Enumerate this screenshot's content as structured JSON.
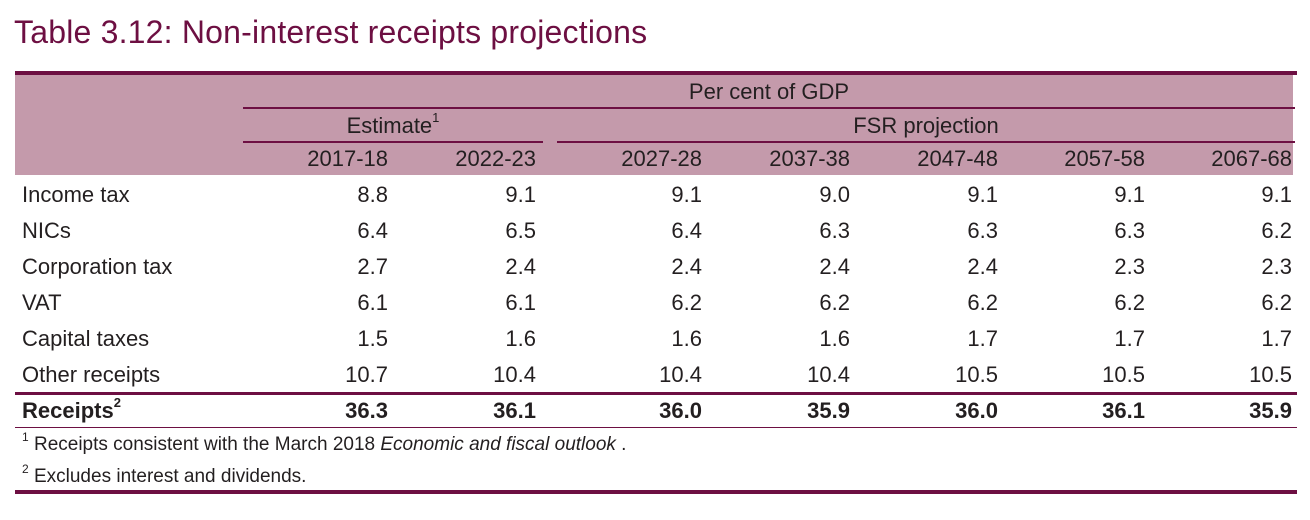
{
  "title": "Table 3.12:  Non-interest receipts projections",
  "header": {
    "unit": "Per cent of GDP",
    "group_estimate": "Estimate",
    "group_estimate_note": "1",
    "group_projection": "FSR projection",
    "years": [
      "2017-18",
      "2022-23",
      "2027-28",
      "2037-38",
      "2047-48",
      "2057-58",
      "2067-68"
    ]
  },
  "rows": [
    {
      "label": "Income tax",
      "values": [
        "8.8",
        "9.1",
        "9.1",
        "9.0",
        "9.1",
        "9.1",
        "9.1"
      ]
    },
    {
      "label": "NICs",
      "values": [
        "6.4",
        "6.5",
        "6.4",
        "6.3",
        "6.3",
        "6.3",
        "6.2"
      ]
    },
    {
      "label": "Corporation tax",
      "values": [
        "2.7",
        "2.4",
        "2.4",
        "2.4",
        "2.4",
        "2.3",
        "2.3"
      ]
    },
    {
      "label": "VAT",
      "values": [
        "6.1",
        "6.1",
        "6.2",
        "6.2",
        "6.2",
        "6.2",
        "6.2"
      ]
    },
    {
      "label": "Capital taxes",
      "values": [
        "1.5",
        "1.6",
        "1.6",
        "1.6",
        "1.7",
        "1.7",
        "1.7"
      ]
    },
    {
      "label": "Other receipts",
      "values": [
        "10.7",
        "10.4",
        "10.4",
        "10.4",
        "10.5",
        "10.5",
        "10.5"
      ]
    }
  ],
  "total": {
    "label": "Receipts",
    "note": "2",
    "values": [
      "36.3",
      "36.1",
      "36.0",
      "35.9",
      "36.0",
      "36.1",
      "35.9"
    ]
  },
  "footnotes": [
    {
      "mark": "1",
      "text": "Receipts consistent with the March 2018 ",
      "italic": "Economic and fiscal outlook",
      "end": " ."
    },
    {
      "mark": "2",
      "text": "Excludes interest and dividends."
    }
  ],
  "colors": {
    "accent": "#6d0f42",
    "header_band": "#c49aab",
    "text": "#231f20"
  }
}
